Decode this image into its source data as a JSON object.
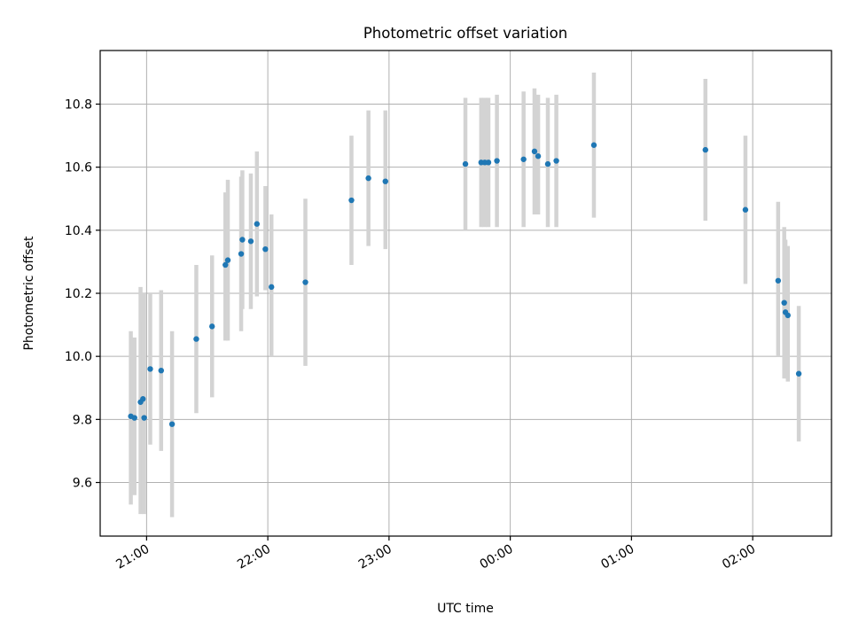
{
  "chart_data": {
    "type": "scatter",
    "title": "Photometric offset variation",
    "xlabel": "UTC time",
    "ylabel": "Photometric offset",
    "xlim": [
      20.617,
      26.65
    ],
    "ylim": [
      9.43,
      10.97
    ],
    "xticks": [
      {
        "value": 21,
        "label": "21:00"
      },
      {
        "value": 22,
        "label": "22:00"
      },
      {
        "value": 23,
        "label": "23:00"
      },
      {
        "value": 24,
        "label": "00:00"
      },
      {
        "value": 25,
        "label": "01:00"
      },
      {
        "value": 26,
        "label": "02:00"
      }
    ],
    "yticks": [
      9.6,
      9.8,
      10.0,
      10.2,
      10.4,
      10.6,
      10.8
    ],
    "grid": true,
    "colors": {
      "point": "#1f77b4",
      "errorbar": "#d3d3d3"
    },
    "x_note": "times after midnight shown as hours beyond 24",
    "points": [
      {
        "x": 20.87,
        "y": 9.81,
        "lo": 9.53,
        "hi": 10.08
      },
      {
        "x": 20.9,
        "y": 9.805,
        "lo": 9.56,
        "hi": 10.06
      },
      {
        "x": 20.95,
        "y": 9.855,
        "lo": 9.5,
        "hi": 10.22
      },
      {
        "x": 20.97,
        "y": 9.865,
        "lo": 9.51,
        "hi": 10.11
      },
      {
        "x": 20.98,
        "y": 9.805,
        "lo": 9.5,
        "hi": 10.2
      },
      {
        "x": 21.03,
        "y": 9.96,
        "lo": 9.72,
        "hi": 10.2
      },
      {
        "x": 21.12,
        "y": 9.955,
        "lo": 9.7,
        "hi": 10.21
      },
      {
        "x": 21.21,
        "y": 9.785,
        "lo": 9.49,
        "hi": 10.08
      },
      {
        "x": 21.41,
        "y": 10.055,
        "lo": 9.82,
        "hi": 10.29
      },
      {
        "x": 21.54,
        "y": 10.095,
        "lo": 9.87,
        "hi": 10.32
      },
      {
        "x": 21.65,
        "y": 10.29,
        "lo": 10.05,
        "hi": 10.52
      },
      {
        "x": 21.67,
        "y": 10.305,
        "lo": 10.05,
        "hi": 10.56
      },
      {
        "x": 21.78,
        "y": 10.325,
        "lo": 10.08,
        "hi": 10.57
      },
      {
        "x": 21.79,
        "y": 10.37,
        "lo": 10.15,
        "hi": 10.59
      },
      {
        "x": 21.86,
        "y": 10.365,
        "lo": 10.15,
        "hi": 10.58
      },
      {
        "x": 21.91,
        "y": 10.42,
        "lo": 10.19,
        "hi": 10.65
      },
      {
        "x": 21.98,
        "y": 10.34,
        "lo": 10.21,
        "hi": 10.54
      },
      {
        "x": 22.03,
        "y": 10.22,
        "lo": 10.0,
        "hi": 10.45
      },
      {
        "x": 22.31,
        "y": 10.235,
        "lo": 9.97,
        "hi": 10.5
      },
      {
        "x": 22.69,
        "y": 10.495,
        "lo": 10.29,
        "hi": 10.7
      },
      {
        "x": 22.83,
        "y": 10.565,
        "lo": 10.35,
        "hi": 10.78
      },
      {
        "x": 22.97,
        "y": 10.555,
        "lo": 10.34,
        "hi": 10.78
      },
      {
        "x": 23.63,
        "y": 10.61,
        "lo": 10.4,
        "hi": 10.82
      },
      {
        "x": 23.76,
        "y": 10.615,
        "lo": 10.41,
        "hi": 10.82
      },
      {
        "x": 23.79,
        "y": 10.615,
        "lo": 10.41,
        "hi": 10.82
      },
      {
        "x": 23.82,
        "y": 10.615,
        "lo": 10.41,
        "hi": 10.82
      },
      {
        "x": 23.89,
        "y": 10.62,
        "lo": 10.41,
        "hi": 10.83
      },
      {
        "x": 24.11,
        "y": 10.625,
        "lo": 10.41,
        "hi": 10.84
      },
      {
        "x": 24.2,
        "y": 10.65,
        "lo": 10.45,
        "hi": 10.85
      },
      {
        "x": 24.23,
        "y": 10.635,
        "lo": 10.45,
        "hi": 10.83
      },
      {
        "x": 24.31,
        "y": 10.61,
        "lo": 10.41,
        "hi": 10.82
      },
      {
        "x": 24.38,
        "y": 10.62,
        "lo": 10.41,
        "hi": 10.83
      },
      {
        "x": 24.69,
        "y": 10.67,
        "lo": 10.44,
        "hi": 10.9
      },
      {
        "x": 25.61,
        "y": 10.655,
        "lo": 10.43,
        "hi": 10.88
      },
      {
        "x": 25.94,
        "y": 10.465,
        "lo": 10.23,
        "hi": 10.7
      },
      {
        "x": 26.21,
        "y": 10.24,
        "lo": 10.0,
        "hi": 10.49
      },
      {
        "x": 26.26,
        "y": 10.17,
        "lo": 9.93,
        "hi": 10.41
      },
      {
        "x": 26.27,
        "y": 10.14,
        "lo": 9.93,
        "hi": 10.37
      },
      {
        "x": 26.29,
        "y": 10.13,
        "lo": 9.92,
        "hi": 10.35
      },
      {
        "x": 26.38,
        "y": 9.945,
        "lo": 9.73,
        "hi": 10.16
      }
    ]
  }
}
